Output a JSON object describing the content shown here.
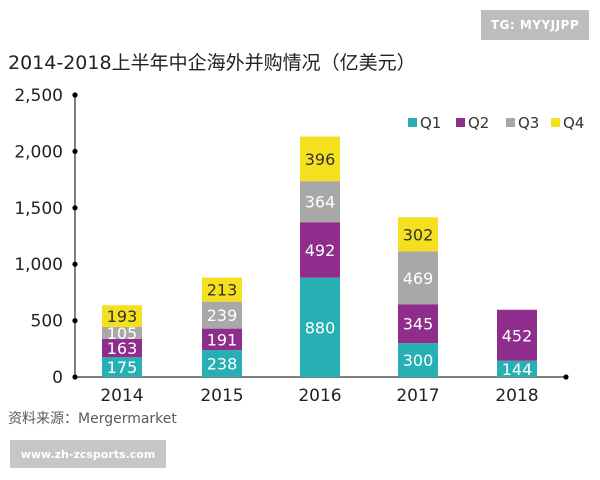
{
  "watermark": {
    "tag": "TG: MYYJJPP",
    "url": "www.zh-zcsports.com"
  },
  "source": "资料来源：Mergermarket",
  "chart_data": {
    "type": "bar",
    "stacked": true,
    "title": "2014-2018上半年中企海外并购情况（亿美元）",
    "categories": [
      "2014",
      "2015",
      "2016",
      "2017",
      "2018"
    ],
    "series": [
      {
        "name": "Q1",
        "values": [
          175,
          238,
          880,
          300,
          144
        ],
        "color": "#27b0b3"
      },
      {
        "name": "Q2",
        "values": [
          163,
          191,
          492,
          345,
          452
        ],
        "color": "#8e2d8c"
      },
      {
        "name": "Q3",
        "values": [
          105,
          239,
          364,
          469,
          null
        ],
        "color": "#a8a8a8"
      },
      {
        "name": "Q4",
        "values": [
          193,
          213,
          396,
          302,
          null
        ],
        "color": "#f4e01e"
      }
    ],
    "ylim": [
      0,
      2500
    ],
    "yticks": [
      0,
      500,
      1000,
      1500,
      2000,
      2500
    ],
    "ytick_labels": [
      "0",
      "500",
      "1,000",
      "1,500",
      "2,000",
      "2,500"
    ],
    "legend": "top-right",
    "grid": false
  }
}
